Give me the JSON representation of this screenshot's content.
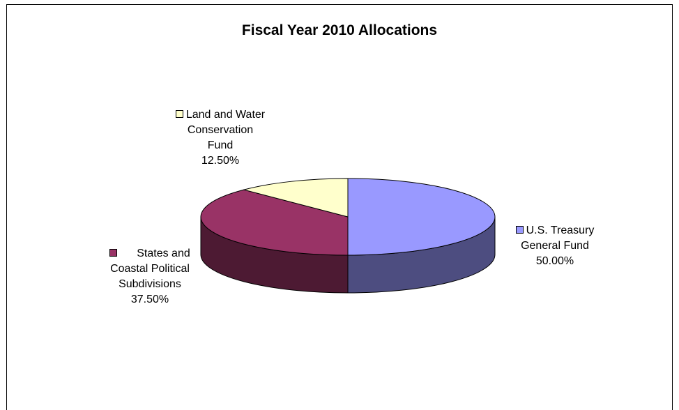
{
  "chart_data": {
    "type": "pie",
    "style": "3d",
    "title": "Fiscal Year 2010 Allocations",
    "slices": [
      {
        "label": "U.S. Treasury General Fund",
        "value": 50.0,
        "display": "50.00%",
        "color": "#9999ff",
        "side_color": "#4d4d80"
      },
      {
        "label": "States and Coastal Political Subdivisions",
        "value": 37.5,
        "display": "37.50%",
        "color": "#993366",
        "side_color": "#4d1a33"
      },
      {
        "label": "Land and Water Conservation Fund",
        "value": 12.5,
        "display": "12.50%",
        "color": "#ffffcc",
        "side_color": "#808066"
      }
    ],
    "legend": "none",
    "data_labels": "category and percent"
  },
  "labels": {
    "treasury": {
      "line1": "U.S. Treasury",
      "line2": "General Fund",
      "pct": "50.00%"
    },
    "states": {
      "line1": "States and",
      "line2": "Coastal Political",
      "line3": "Subdivisions",
      "pct": "37.50%"
    },
    "land": {
      "line1": "Land and Water",
      "line2": "Conservation",
      "line3": "Fund",
      "pct": "12.50%"
    }
  }
}
